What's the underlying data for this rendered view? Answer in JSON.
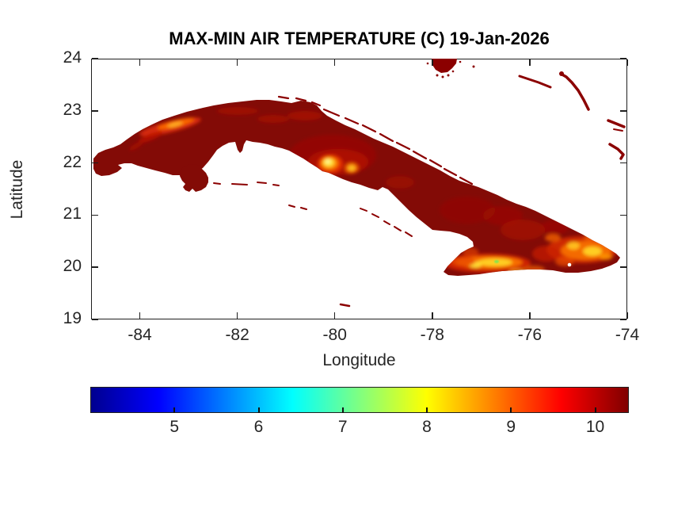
{
  "figure": {
    "background": "#FFFFFF",
    "axis_color": "#262626",
    "land_base_color": "#830B06"
  },
  "chart_data": {
    "type": "heatmap",
    "title": "MAX-MIN AIR TEMPERATURE (C) 19-Jan-2026",
    "xlabel": "Longitude",
    "ylabel": "Latitude",
    "xlim": [
      -85,
      -74
    ],
    "ylim": [
      19,
      24
    ],
    "x_ticks": [
      -84,
      -82,
      -80,
      -78,
      -76,
      -74
    ],
    "y_ticks": [
      24,
      23,
      22,
      21,
      20,
      19
    ],
    "grid": false,
    "colorbar": {
      "orientation": "horizontal",
      "position": "below plot",
      "colormap": "jet",
      "value_range": [
        4.0,
        10.4
      ],
      "ticks": [
        5,
        6,
        7,
        8,
        9,
        10
      ],
      "jet_stops": [
        "#00008F",
        "#0000FF",
        "#00FFFF",
        "#80FF80",
        "#FFFF00",
        "#FF0000",
        "#800000"
      ]
    },
    "landmasses": [
      "Cuba mainland",
      "Isla de la Juventud",
      "offshore cays (north and south archipelagos)",
      "Bahamas islands along top of map"
    ],
    "regions": [
      {
        "name": "most of Cuba (lowlands)",
        "value_c": "~10.3 (dark red, near colorbar maximum)"
      },
      {
        "name": "Pinar del Rio ridge (northwest)",
        "value_c": "~8.5-9.5 (orange-red band)"
      },
      {
        "name": "Escambray mountains near Trinidad (south-central)",
        "value_c": "~7.5-8 (yellow core spot)"
      },
      {
        "name": "Sierra Maestra (southeast coast)",
        "value_c": "~6.5-7.5 (yellow band with small green speck ~6)"
      },
      {
        "name": "eastern highlands near eastern tip",
        "value_c": "~7.5-8.5 (orange-yellow mottling)"
      },
      {
        "name": "sea / outside land",
        "value_c": "no data (white)"
      }
    ]
  }
}
